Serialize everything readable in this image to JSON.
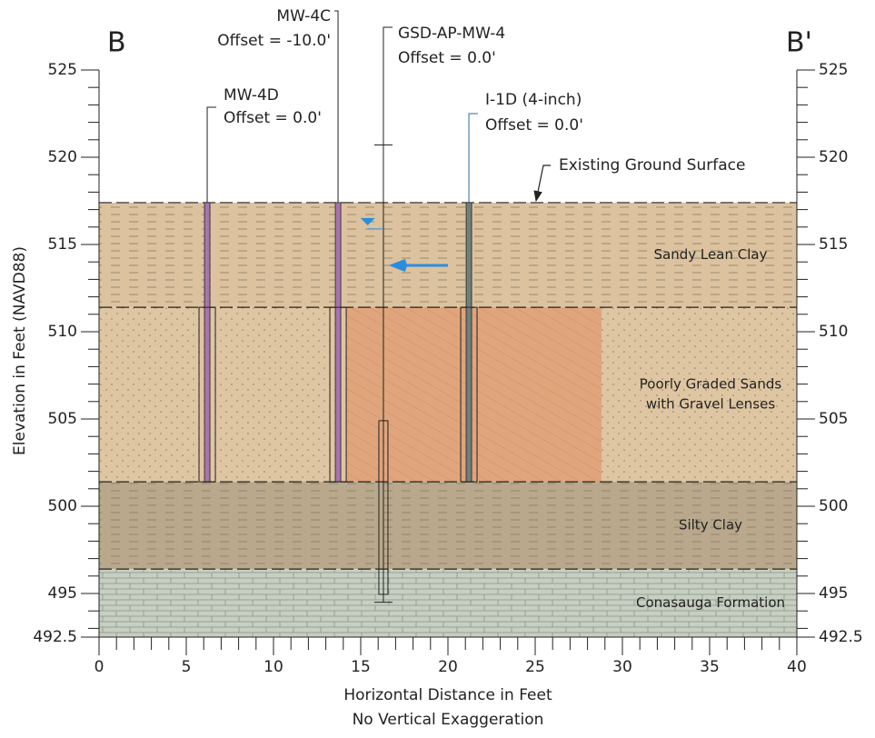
{
  "chart_data": {
    "type": "cross-section",
    "section_start": "B",
    "section_end": "B'",
    "xlabel": "Horizontal Distance in Feet",
    "xlabel_note": "No Vertical Exaggeration",
    "ylabel": "Elevation in Feet (NAVD88)",
    "xlim": [
      0,
      40
    ],
    "ylim": [
      492.5,
      525
    ],
    "xticks": [
      0,
      5,
      10,
      15,
      20,
      25,
      30,
      35,
      40
    ],
    "yticks": [
      492.5,
      495,
      500,
      505,
      510,
      515,
      520,
      525
    ],
    "xminorticks": [
      1,
      2,
      3,
      4,
      6,
      7,
      8,
      9,
      11,
      12,
      13,
      14,
      16,
      17,
      18,
      19,
      21,
      22,
      23,
      24,
      26,
      27,
      28,
      29,
      31,
      32,
      33,
      34,
      36,
      37,
      38,
      39
    ],
    "yminorticks": [
      493,
      494,
      496,
      497,
      498,
      499,
      501,
      502,
      503,
      504,
      506,
      507,
      508,
      509,
      511,
      512,
      513,
      514,
      516,
      517,
      518,
      519,
      521,
      522,
      523,
      524
    ],
    "ground_surface_label": "Existing Ground Surface",
    "layers": [
      {
        "label": [
          "Sandy Lean Clay"
        ],
        "top": 517.4,
        "bottom": 511.4,
        "color": "#dcc29e",
        "pattern": "dash"
      },
      {
        "label": [
          "Poorly Graded Sands",
          "with Gravel Lenses"
        ],
        "top": 511.4,
        "bottom": 501.4,
        "color": "#dfc6a2",
        "pattern": "dot"
      },
      {
        "label": [
          "Silty Clay"
        ],
        "top": 501.4,
        "bottom": 496.4,
        "color": "#b9a88b",
        "pattern": "dash"
      },
      {
        "label": [
          "Conasauga Formation"
        ],
        "top": 496.4,
        "bottom": 492.5,
        "color": "#c7cfc2",
        "pattern": "brick"
      }
    ],
    "zone": {
      "x": [
        14.2,
        28.8
      ],
      "top": 511.4,
      "bottom": 501.4,
      "color": "#e0a57c"
    },
    "wells": [
      {
        "name": "MW-4D",
        "offset": "Offset = 0.0'",
        "x": 6.2,
        "top": 517.4,
        "screen_top": 511.4,
        "screen_bottom": 501.4,
        "color": "#a874ae",
        "label_color": "#222222"
      },
      {
        "name": "MW-4C",
        "offset": "Offset = -10.0'",
        "x": 13.7,
        "top": 517.4,
        "screen_top": 511.4,
        "screen_bottom": 501.4,
        "color": "#a874ae",
        "label_color": "#5b2e66"
      },
      {
        "name": "I-1D (4-inch)",
        "offset": "Offset = 0.0'",
        "x": 21.2,
        "top": 517.4,
        "screen_top": 511.4,
        "screen_bottom": 501.4,
        "color": "#72807a",
        "label_color": "#2e6aa6"
      }
    ],
    "boring": {
      "name": "GSD-AP-MW-4",
      "offset": "Offset = 0.0'",
      "x": 16.3,
      "top": 520.7,
      "bottom": 494.5,
      "screen_top": 504.9,
      "screen_bottom": 494.95,
      "label_color": "#222222"
    },
    "water_level": {
      "x": 15.4,
      "elevation": 516.1,
      "color": "#2a8ee0"
    },
    "flow_arrow": {
      "x": [
        20.0,
        16.6
      ],
      "elevation": 513.8,
      "color": "#2a8ee0"
    }
  }
}
